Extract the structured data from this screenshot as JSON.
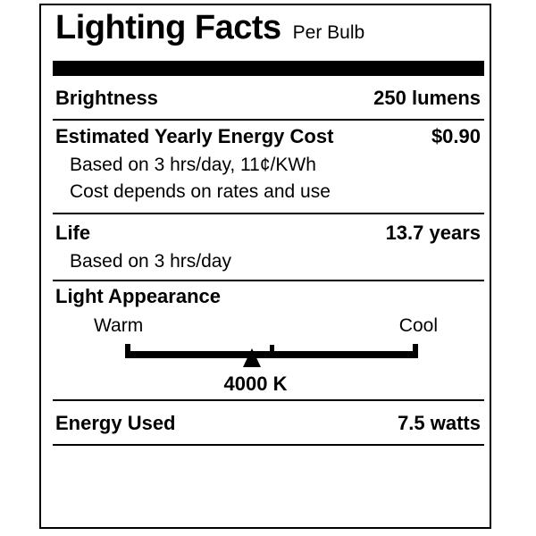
{
  "label": {
    "title": "Lighting Facts",
    "per_unit": "Per Bulb",
    "brightness": {
      "label": "Brightness",
      "value": "250 lumens"
    },
    "energy_cost": {
      "label": "Estimated Yearly Energy Cost",
      "value": "$0.90",
      "notes": [
        "Based on 3 hrs/day, 11¢/KWh",
        "Cost depends on rates and use"
      ]
    },
    "life": {
      "label": "Life",
      "value": "13.7 years",
      "notes": [
        "Based on 3 hrs/day"
      ]
    },
    "appearance": {
      "label": "Light Appearance",
      "warm_label": "Warm",
      "cool_label": "Cool",
      "kelvin_value": "4000 K",
      "marker_pct": 43.3
    },
    "energy_used": {
      "label": "Energy Used",
      "value": "7.5 watts"
    },
    "colors": {
      "ink": "#000000",
      "paper": "#ffffff"
    }
  }
}
